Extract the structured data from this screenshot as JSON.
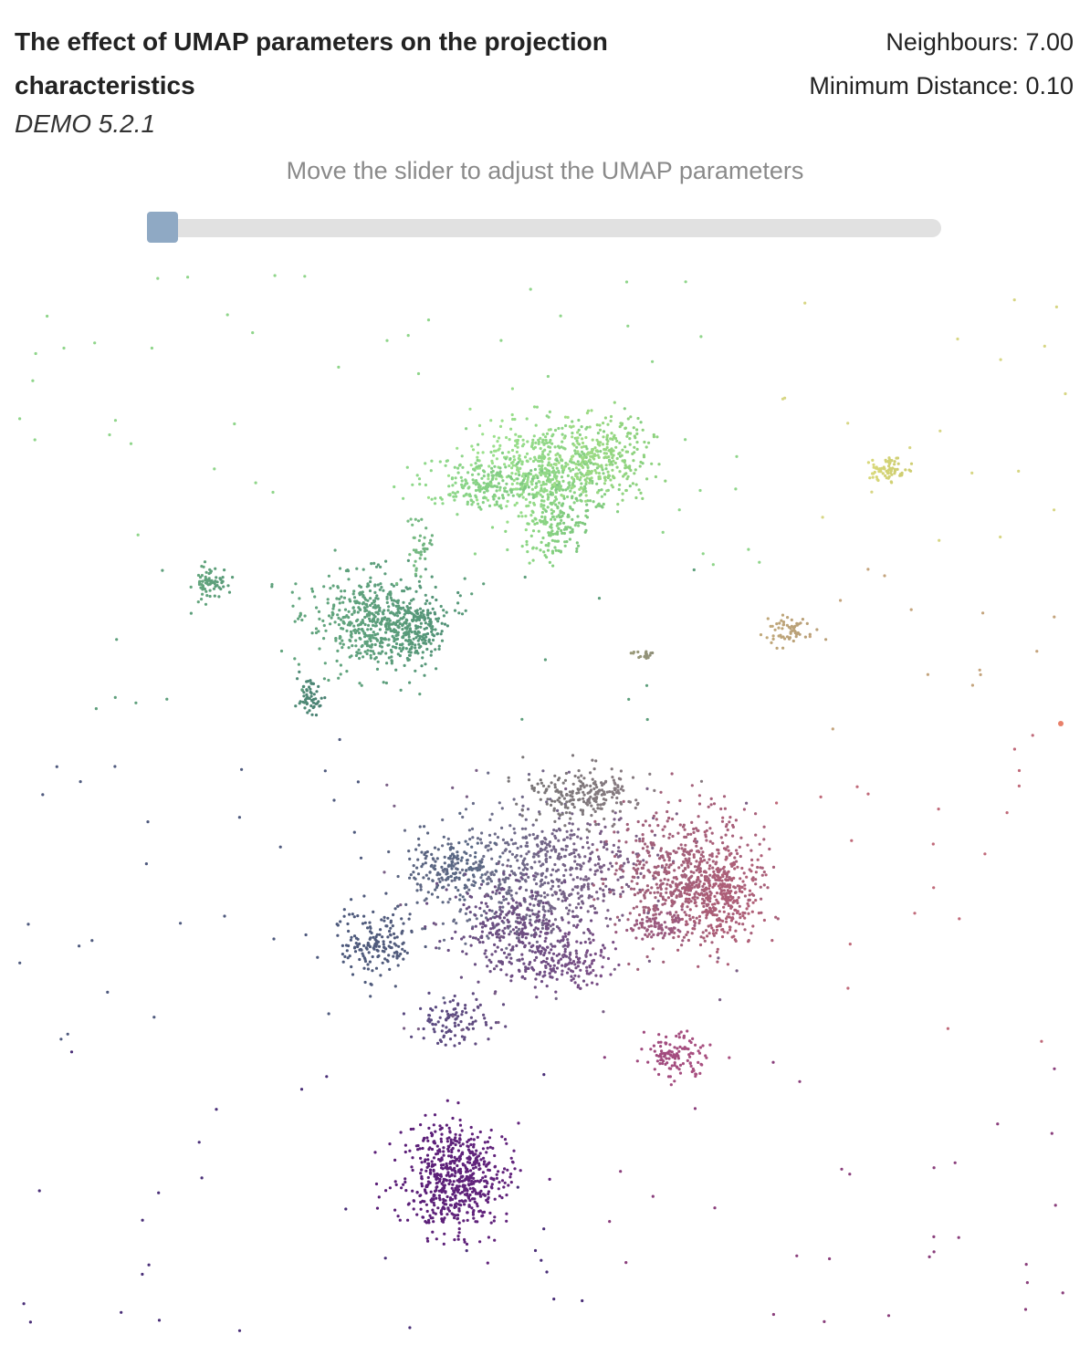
{
  "header": {
    "title": "The effect of UMAP parameters on the projection characteristics",
    "subtitle": "DEMO 5.2.1"
  },
  "params": {
    "neighbours_label": "Neighbours:",
    "neighbours_value": "7.00",
    "min_distance_label": "Minimum Distance:",
    "min_distance_value": "0.10"
  },
  "controls": {
    "instruction": "Move the slider to adjust the UMAP parameters",
    "slider_position": 0.0
  },
  "colors": {
    "slider_track": "#e1e1e1",
    "slider_handle": "#8fa9c4",
    "cluster_colors": [
      "#93d98a",
      "#5a9e78",
      "#5e5a78",
      "#8a6a8a",
      "#a35d6e",
      "#a04a7e",
      "#5b1f78",
      "#d8d87a",
      "#c0a87a",
      "#e8806a"
    ]
  },
  "chart_data": {
    "type": "scatter",
    "title": "",
    "xlabel": "",
    "ylabel": "",
    "grid": false,
    "legend": "none",
    "series": [
      {
        "color": "#93d98a",
        "count": 1300,
        "center": [
          598,
          520
        ]
      },
      {
        "color": "#5a9e78",
        "count": 900,
        "center": [
          410,
          680
        ]
      },
      {
        "color": "#6a6f8a",
        "count": 1800,
        "center": [
          590,
          990
        ]
      },
      {
        "color": "#a0607a",
        "count": 1000,
        "center": [
          760,
          960
        ]
      },
      {
        "color": "#5b1f78",
        "count": 600,
        "center": [
          500,
          1290
        ]
      },
      {
        "color": "#d8d87a",
        "count": 60,
        "center": [
          970,
          517
        ]
      }
    ]
  }
}
